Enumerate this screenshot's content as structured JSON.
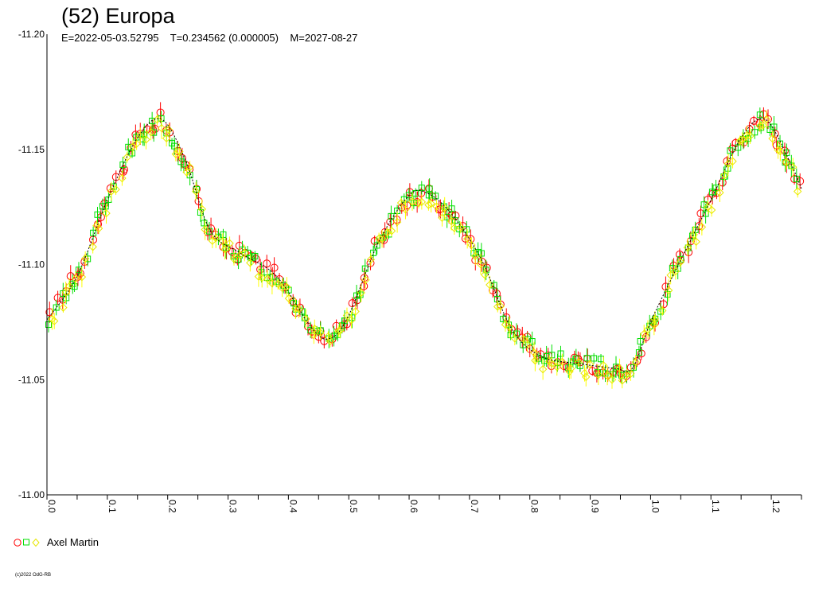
{
  "title": "(52) Europa",
  "subtitle": "E=2022-05-03.52795    T=0.234562 (0.000005)    M=2027-08-27",
  "copyright": "(c)2022 OdG-RB",
  "legend": {
    "observer": "Axel Martin",
    "colors": [
      "#ff0000",
      "#00e000",
      "#ffff00"
    ]
  },
  "chart_data": {
    "type": "scatter",
    "title": "(52) Europa",
    "xlabel": "",
    "ylabel": "",
    "xlim": [
      0.0,
      1.25
    ],
    "ylim": [
      -11.2,
      -11.0
    ],
    "y_inverted": true,
    "yticks": [
      "-11.20",
      "-11.15",
      "-11.10",
      "-11.05",
      "-11.00"
    ],
    "xticks": [
      "0.0",
      "0.1",
      "0.2",
      "0.3",
      "0.4",
      "0.5",
      "0.6",
      "0.7",
      "0.8",
      "0.9",
      "1.0",
      "1.1",
      "1.2"
    ],
    "grid": false,
    "legend_position": "bottom-left",
    "lightcurve": {
      "x": [
        0.0,
        0.05,
        0.1,
        0.15,
        0.19,
        0.23,
        0.27,
        0.32,
        0.38,
        0.44,
        0.47,
        0.5,
        0.55,
        0.6,
        0.63,
        0.67,
        0.72,
        0.77,
        0.82,
        0.88,
        0.94,
        0.97,
        1.0,
        1.05,
        1.1,
        1.15,
        1.19,
        1.23,
        1.25
      ],
      "y": [
        -11.076,
        -11.095,
        -11.128,
        -11.155,
        -11.163,
        -11.145,
        -11.115,
        -11.105,
        -11.095,
        -11.072,
        -11.068,
        -11.078,
        -11.11,
        -11.13,
        -11.131,
        -11.122,
        -11.102,
        -11.072,
        -11.06,
        -11.057,
        -11.055,
        -11.055,
        -11.075,
        -11.102,
        -11.128,
        -11.155,
        -11.163,
        -11.145,
        -11.133
      ]
    },
    "series": [
      {
        "name": "Axel Martin",
        "marker": "circle",
        "color": "#ff0000"
      },
      {
        "name": "Axel Martin",
        "marker": "square",
        "color": "#00e000"
      },
      {
        "name": "Axel Martin",
        "marker": "diamond",
        "color": "#ffff00"
      }
    ]
  }
}
